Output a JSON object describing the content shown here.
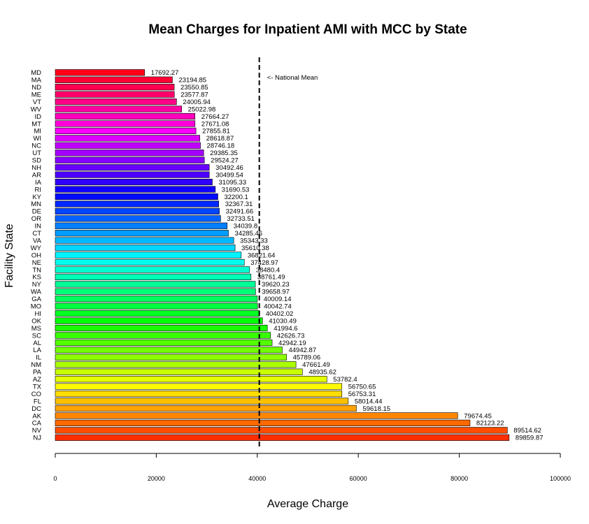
{
  "chart_data": {
    "type": "bar",
    "orientation": "horizontal",
    "title": "Mean Charges for Inpatient AMI with MCC by State",
    "xlabel": "Average Charge",
    "ylabel": "Facility State",
    "xlim": [
      0,
      100000
    ],
    "xticks": [
      "0",
      "20000",
      "40000",
      "60000",
      "80000",
      "100000"
    ],
    "grid": false,
    "categories": [
      "MD",
      "MA",
      "ND",
      "ME",
      "VT",
      "WV",
      "ID",
      "MT",
      "MI",
      "WI",
      "NC",
      "UT",
      "SD",
      "NH",
      "AR",
      "IA",
      "RI",
      "KY",
      "MN",
      "DE",
      "OR",
      "IN",
      "CT",
      "VA",
      "WY",
      "OH",
      "NE",
      "TN",
      "KS",
      "NY",
      "WA",
      "GA",
      "MO",
      "HI",
      "OK",
      "MS",
      "SC",
      "AL",
      "LA",
      "IL",
      "NM",
      "PA",
      "AZ",
      "TX",
      "CO",
      "FL",
      "DC",
      "AK",
      "CA",
      "NV",
      "NJ"
    ],
    "values": [
      17692.27,
      23194.85,
      23550.85,
      23577.87,
      24005.94,
      25022.98,
      27664.27,
      27671.08,
      27855.81,
      28618.87,
      28746.18,
      29385.35,
      29524.27,
      30492.46,
      30499.54,
      31095.33,
      31690.53,
      32200.1,
      32367.31,
      32491.66,
      32733.51,
      34039.8,
      34285.46,
      35343.33,
      35610.38,
      36821.64,
      37428.97,
      38480.4,
      38761.49,
      39620.23,
      39658.97,
      40009.14,
      40042.74,
      40402.02,
      41030.49,
      41994.6,
      42626.73,
      42942.19,
      44942.87,
      45789.06,
      47661.49,
      48935.62,
      53782.4,
      56750.65,
      56753.31,
      58014.44,
      59618.15,
      79674.45,
      82123.22,
      89514.62,
      89859.87
    ],
    "value_labels": [
      "17692.27",
      "23194.85",
      "23550.85",
      "23577.87",
      "24005.94",
      "25022.98",
      "27664.27",
      "27671.08",
      "27855.81",
      "28618.87",
      "28746.18",
      "29385.35",
      "29524.27",
      "30492.46",
      "30499.54",
      "31095.33",
      "31690.53",
      "32200.1",
      "32367.31",
      "32491.66",
      "32733.51",
      "34039.8",
      "34285.46",
      "35343.33",
      "35610.38",
      "36821.64",
      "37428.97",
      "38480.4",
      "38761.49",
      "39620.23",
      "39658.97",
      "40009.14",
      "40042.74",
      "40402.02",
      "41030.49",
      "41994.6",
      "42626.73",
      "42942.19",
      "44942.87",
      "45789.06",
      "47661.49",
      "48935.62",
      "53782.4",
      "56750.65",
      "56753.31",
      "58014.44",
      "59618.15",
      "79674.45",
      "82123.22",
      "89514.62",
      "89859.87"
    ],
    "reference_line": {
      "value": 40400,
      "label": "<- National Mean",
      "style": "dashed"
    },
    "colors": [
      "#ff0019",
      "#ff0035",
      "#ff0050",
      "#ff006b",
      "#ff0086",
      "#ff00a1",
      "#ff00bd",
      "#ff00d8",
      "#fb00ff",
      "#dd00ff",
      "#c000ff",
      "#a300ff",
      "#8600ff",
      "#6900ff",
      "#4c00ff",
      "#2f00ff",
      "#1200ff",
      "#000bff",
      "#0028ff",
      "#0045ff",
      "#0062ff",
      "#007fff",
      "#009cff",
      "#00b9ff",
      "#00d6ff",
      "#00f4ff",
      "#00ffee",
      "#00ffd1",
      "#00ffb4",
      "#00ff97",
      "#00ff7a",
      "#00ff5c",
      "#00ff3f",
      "#00ff22",
      "#00ff05",
      "#19ff00",
      "#36ff00",
      "#53ff00",
      "#70ff00",
      "#8dff00",
      "#aaff00",
      "#c7ff00",
      "#e4ff00",
      "#fffa00",
      "#ffdd00",
      "#ffc000",
      "#ffa300",
      "#ff8600",
      "#ff6900",
      "#ff4c00",
      "#ff2e00"
    ]
  }
}
